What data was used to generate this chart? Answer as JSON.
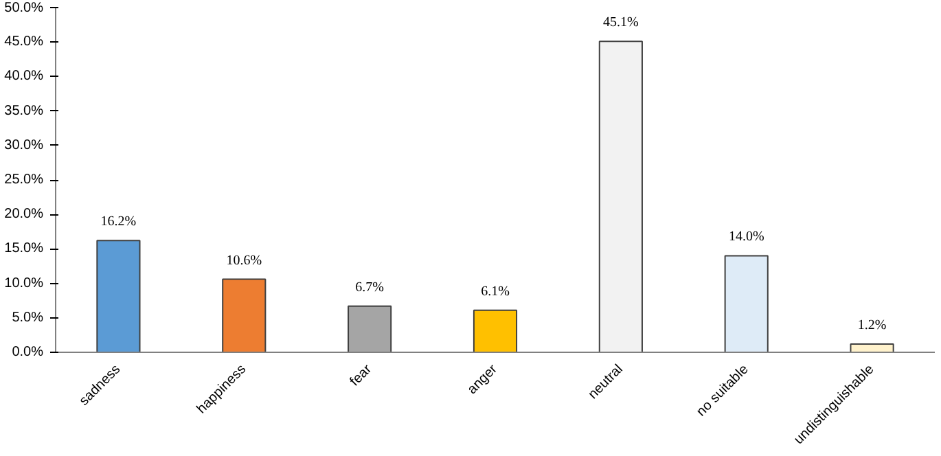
{
  "chart_data": {
    "type": "bar",
    "categories": [
      "sadness",
      "happiness",
      "fear",
      "anger",
      "neutral",
      "no suitable",
      "undistinguishable"
    ],
    "values": [
      16.2,
      10.6,
      6.7,
      6.1,
      45.1,
      14.0,
      1.2
    ],
    "colors": [
      "#5b9bd5",
      "#ed7d31",
      "#a5a5a5",
      "#ffc000",
      "#f2f2f2",
      "#deebf7",
      "#fff2cc"
    ],
    "value_labels": [
      "16.2%",
      "10.6%",
      "6.7%",
      "6.1%",
      "45.1%",
      "14.0%",
      "1.2%"
    ],
    "ylim": [
      0,
      50
    ],
    "yticks": [
      {
        "value": 0,
        "label": "0.0%"
      },
      {
        "value": 5,
        "label": "5.0%"
      },
      {
        "value": 10,
        "label": "10.0%"
      },
      {
        "value": 15,
        "label": "15.0%"
      },
      {
        "value": 20,
        "label": "20.0%"
      },
      {
        "value": 25,
        "label": "25.0%"
      },
      {
        "value": 30,
        "label": "30.0%"
      },
      {
        "value": 35,
        "label": "35.0%"
      },
      {
        "value": 40,
        "label": "40.0%"
      },
      {
        "value": 45,
        "label": "45.0%"
      },
      {
        "value": 50,
        "label": "50.0%"
      }
    ],
    "grid": false
  }
}
